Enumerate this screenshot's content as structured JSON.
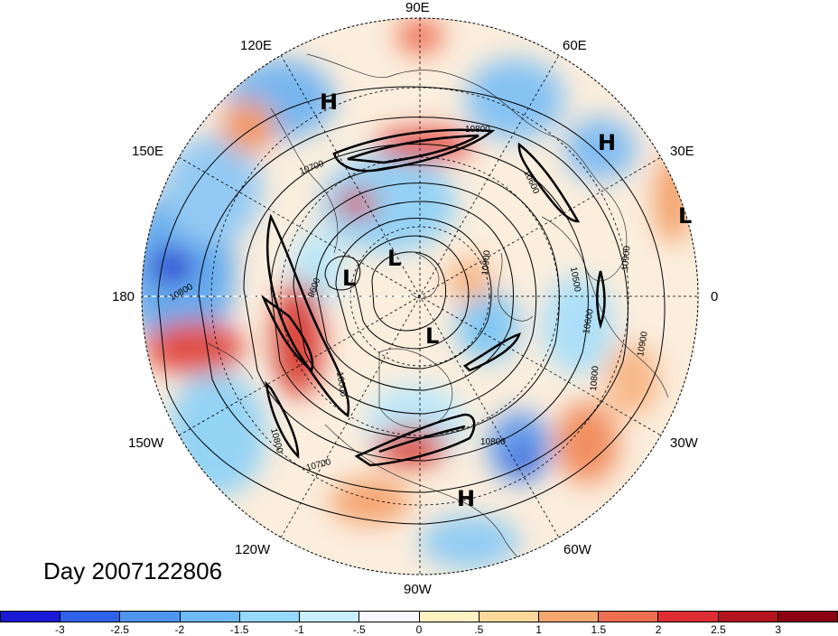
{
  "map": {
    "projection": "north-polar-stereographic",
    "date_label": "Day 2007122806",
    "longitude_labels": {
      "e0": "0",
      "e30": "30E",
      "e60": "60E",
      "e90": "90E",
      "e120": "120E",
      "e150": "150E",
      "e180": "180",
      "w150": "150W",
      "w120": "120W",
      "w90": "90W",
      "w60": "60W",
      "w30": "30W"
    },
    "pressure_centers": [
      {
        "label": "H",
        "region": "Siberia"
      },
      {
        "label": "H",
        "region": "Eurasia-north"
      },
      {
        "label": "L",
        "region": "Mediterranean"
      },
      {
        "label": "L",
        "region": "Arctic-Siberia"
      },
      {
        "label": "L",
        "region": "Arctic"
      },
      {
        "label": "L",
        "region": "Canada"
      },
      {
        "label": "H",
        "region": "Atlantic-southwest"
      }
    ],
    "contour_labels": [
      "10800",
      "10700",
      "10600",
      "10500",
      "9600",
      "10000",
      "10800",
      "10900",
      "10600",
      "10900",
      "10800",
      "10800",
      "10700",
      "10900",
      "10800"
    ]
  },
  "colorbar": {
    "tick_labels": [
      "-3",
      "-2.5",
      "-2",
      "-1.5",
      "-1",
      "-.5",
      "0",
      ".5",
      "1",
      "1.5",
      "2",
      "2.5",
      "3"
    ],
    "colors": [
      "#1a1ad6",
      "#2f62e8",
      "#4f95ef",
      "#6db9f6",
      "#96d9fa",
      "#c9efff",
      "#f7f7ff",
      "#fff2c2",
      "#fcd99a",
      "#f6a76e",
      "#ee6e52",
      "#dd2f33",
      "#b4141e",
      "#8c0014"
    ]
  }
}
